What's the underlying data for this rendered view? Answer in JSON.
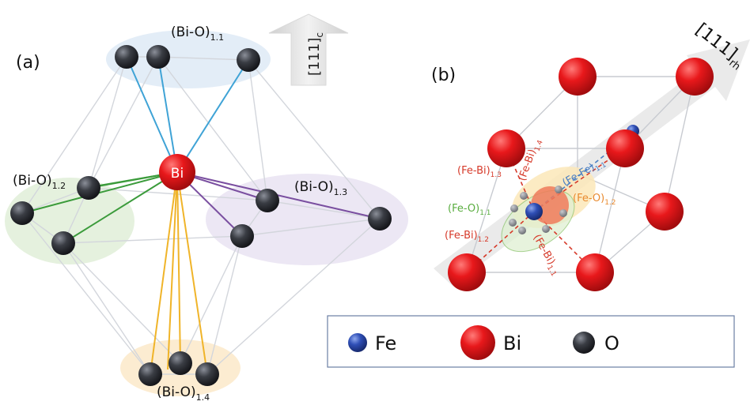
{
  "panel_a": {
    "label": "(a)",
    "axis": {
      "main": "[111]",
      "sub": "c"
    },
    "center_atom": "Bi",
    "groups": [
      {
        "main": "(Bi-O)",
        "sub": "1.1"
      },
      {
        "main": "(Bi-O)",
        "sub": "1.2"
      },
      {
        "main": "(Bi-O)",
        "sub": "1.3"
      },
      {
        "main": "(Bi-O)",
        "sub": "1.4"
      }
    ]
  },
  "panel_b": {
    "label": "(b)",
    "axis": {
      "main": "[111]",
      "sub": "rh"
    },
    "bonds": [
      {
        "main": "(Fe-Bi)",
        "sub": "1.3"
      },
      {
        "main": "(Fe-Bi)",
        "sub": "1.4"
      },
      {
        "main": "(Fe-Fe)",
        "sub": "1.1"
      },
      {
        "main": "(Fe-O)",
        "sub": "1.2"
      },
      {
        "main": "(Fe-O)",
        "sub": "1.1"
      },
      {
        "main": "(Fe-Bi)",
        "sub": "1.2"
      },
      {
        "main": "(Fe-Bi)",
        "sub": "1.1"
      }
    ]
  },
  "legend": {
    "items": [
      "Fe",
      "Bi",
      "O"
    ]
  },
  "colors": {
    "bi": "#e8181b",
    "fe": "#2f4fb6",
    "o": "#3a3d44",
    "blue_bond": "#3fa3d6",
    "green_bond": "#3b9b3b",
    "purple_bond": "#7a4fa0",
    "yellow_bond": "#f0b429",
    "red_label": "#d63a2a",
    "blue_label": "#4a7fc4",
    "green_label": "#59ad3f",
    "orange_label": "#e98a2e"
  }
}
